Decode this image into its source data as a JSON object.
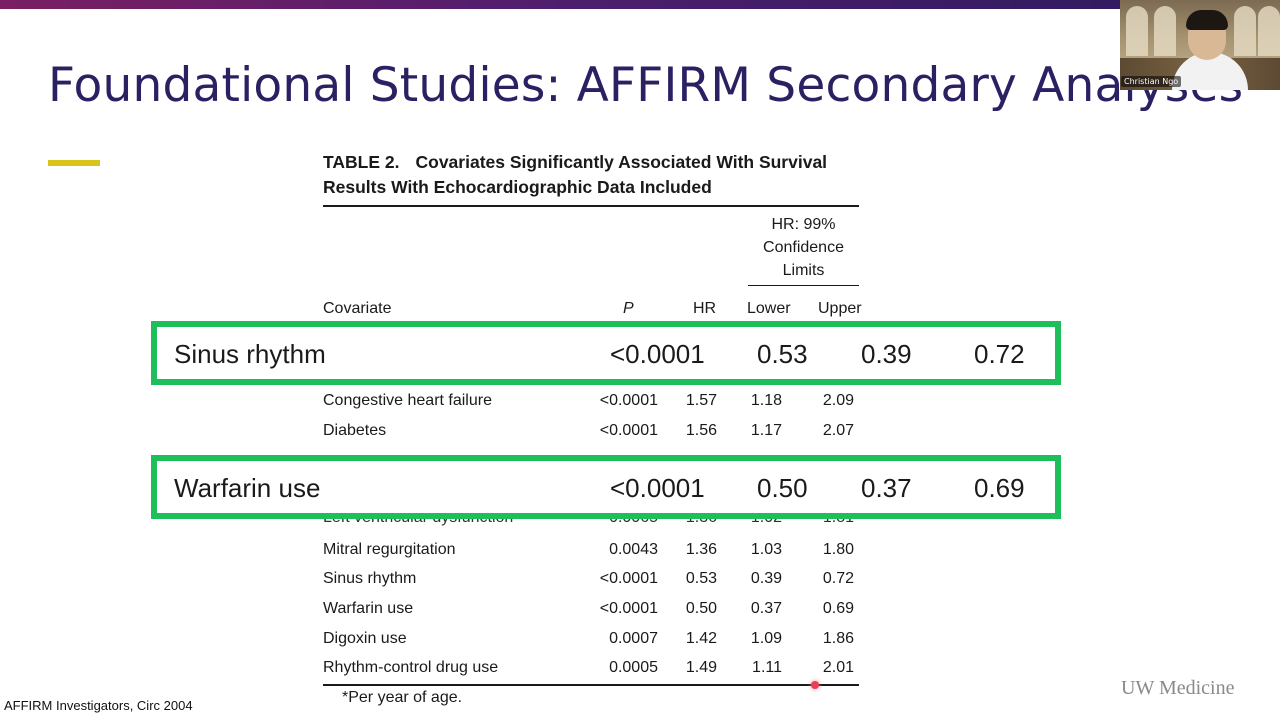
{
  "slide": {
    "title": "Foundational Studies: AFFIRM Secondary Analyses",
    "citation": "AFFIRM Investigators, Circ 2004",
    "brand": "UW Medicine"
  },
  "table": {
    "label": "TABLE 2.",
    "caption_line1": "Covariates Significantly Associated With Survival",
    "caption_line2": "Results With Echocardiographic Data Included",
    "ci_group_header": [
      "HR: 99%",
      "Confidence",
      "Limits"
    ],
    "columns": {
      "covariate": "Covariate",
      "p": "P",
      "hr": "HR",
      "lower": "Lower",
      "upper": "Upper"
    },
    "rows": [
      {
        "covariate": "Congestive heart failure",
        "p": "<0.0001",
        "hr": "1.57",
        "lower": "1.18",
        "upper": "2.09"
      },
      {
        "covariate": "Diabetes",
        "p": "<0.0001",
        "hr": "1.56",
        "lower": "1.17",
        "upper": "2.07"
      },
      {
        "covariate": "Left ventricular dysfunction",
        "p": "0.0065",
        "hr": "1.36",
        "lower": "1.02",
        "upper": "1.81"
      },
      {
        "covariate": "Mitral regurgitation",
        "p": "0.0043",
        "hr": "1.36",
        "lower": "1.03",
        "upper": "1.80"
      },
      {
        "covariate": "Sinus rhythm",
        "p": "<0.0001",
        "hr": "0.53",
        "lower": "0.39",
        "upper": "0.72"
      },
      {
        "covariate": "Warfarin use",
        "p": "<0.0001",
        "hr": "0.50",
        "lower": "0.37",
        "upper": "0.69"
      },
      {
        "covariate": "Digoxin use",
        "p": "0.0007",
        "hr": "1.42",
        "lower": "1.09",
        "upper": "1.86"
      },
      {
        "covariate": "Rhythm-control drug use",
        "p": "0.0005",
        "hr": "1.49",
        "lower": "1.11",
        "upper": "2.01"
      }
    ],
    "footnote": "*Per year of age."
  },
  "highlights": [
    {
      "covariate": "Sinus rhythm",
      "p": "<0.0001",
      "hr": "0.53",
      "lower": "0.39",
      "upper": "0.72"
    },
    {
      "covariate": "Warfarin use",
      "p": "<0.0001",
      "hr": "0.50",
      "lower": "0.37",
      "upper": "0.69"
    }
  ],
  "video": {
    "participant_name": "Christian Ngo"
  },
  "colors": {
    "title": "#2a2163",
    "accent": "#d8c51c",
    "highlight_border": "#1ebe5a",
    "top_bar_start": "#7a1f63",
    "top_bar_end": "#2a1a5e"
  }
}
